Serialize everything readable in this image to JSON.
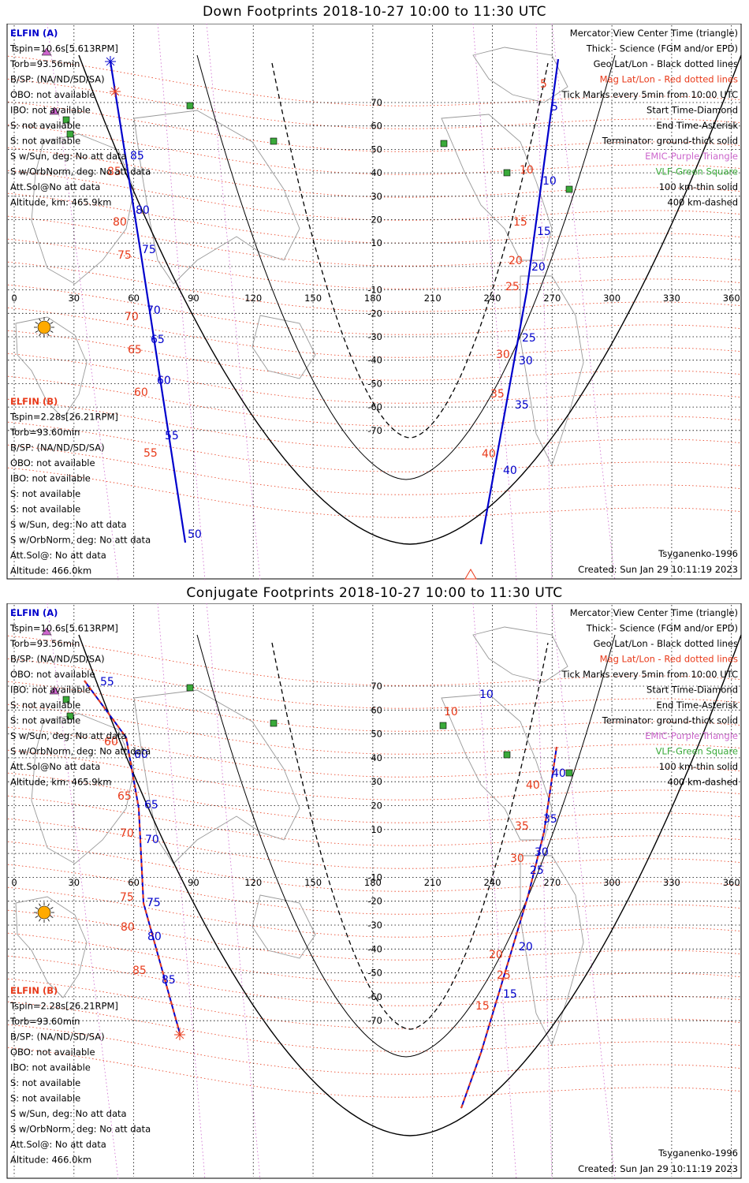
{
  "colors": {
    "blue": "#0000cc",
    "red": "#e83a1a",
    "green": "#3aaa3a",
    "purple": "#cc66cc",
    "black": "#000000",
    "sun": "#ffaa00"
  },
  "icons": [
    "sun-icon",
    "purple-triangle-icon",
    "green-square-icon",
    "asterisk-icon",
    "diamond-icon",
    "center-triangle-icon"
  ],
  "panels": [
    {
      "title": "Down Footprints 2018-10-27 10:00 to 11:30 UTC",
      "info_a": [
        "ELFIN (A)",
        "Tspin=10.6s[5.613RPM]",
        "Torb=93.56min",
        "B/SP: (NA/ND/SD/SA)",
        "OBO: not available",
        "IBO: not available",
        "S: not available",
        "S: not available",
        "S w/Sun, deg: No att data",
        "S w/OrbNorm, deg: No att data",
        "Att.Sol@No att data",
        "Altitude, km: 465.9km"
      ],
      "info_b": [
        "ELFIN (B)",
        "Tspin=2.28s[26.21RPM]",
        "Torb=93.60min",
        "B/SP: (NA/ND/SD/SA)",
        "OBO: not available",
        "IBO: not available",
        "S: not available",
        "S: not available",
        "S w/Sun, deg: No att data",
        "S w/OrbNorm, deg: No att data",
        "Att.Sol@: No att data",
        "Altitude: 466.0km"
      ],
      "legend": [
        "Mercator View Center Time (triangle)",
        "Thick - Science (FGM and/or EPD)",
        "Geo Lat/Lon - Black dotted lines",
        "Mag Lat/Lon - Red dotted lines",
        "Tick Marks every 5min from 10:00 UTC",
        "Start Time-Diamond",
        "End Time-Asterisk",
        "Terminator: ground-thick solid",
        "EMIC-Purple Triangle",
        "VLF-Green Square",
        "100 km-thin solid",
        "400 km-dashed"
      ],
      "model": "Tsyganenko-1996",
      "created": "Created: Sun Jan 29 10:11:19 2023",
      "lon_labels": [
        "0",
        "30",
        "60",
        "90",
        "120",
        "150",
        "180",
        "210",
        "240",
        "270",
        "300",
        "330",
        "360"
      ],
      "lat_labels": [
        "70",
        "60",
        "50",
        "40",
        "30",
        "20",
        "10",
        "-10",
        "-20",
        "-30",
        "-40",
        "-50",
        "-60",
        "-70"
      ],
      "track_a_labels": [
        "85",
        "80",
        "75",
        "70",
        "65",
        "60",
        "55",
        "50"
      ],
      "track_b_labels": [
        "85",
        "80",
        "75",
        "70",
        "65",
        "60",
        "55"
      ],
      "track_a2_labels": [
        "5",
        "10",
        "15",
        "20",
        "25",
        "30",
        "35",
        "40"
      ],
      "track_b2_labels": [
        "5",
        "10",
        "15",
        "20",
        "25",
        "30",
        "35",
        "40"
      ]
    },
    {
      "title": "Conjugate Footprints 2018-10-27 10:00 to 11:30 UTC",
      "info_a": [
        "ELFIN (A)",
        "Tspin=10.6s[5.613RPM]",
        "Torb=93.56min",
        "B/SP: (NA/ND/SD/SA)",
        "OBO: not available",
        "IBO: not available",
        "S: not available",
        "S: not available",
        "S w/Sun, deg: No att data",
        "S w/OrbNorm, deg: No att data",
        "Att.Sol@No att data",
        "Altitude, km: 465.9km"
      ],
      "info_b": [
        "ELFIN (B)",
        "Tspin=2.28s[26.21RPM]",
        "Torb=93.60min",
        "B/SP: (NA/ND/SD/SA)",
        "OBO: not available",
        "IBO: not available",
        "S: not available",
        "S: not available",
        "S w/Sun, deg: No att data",
        "S w/OrbNorm, deg: No att data",
        "Att.Sol@: No att data",
        "Altitude: 466.0km"
      ],
      "legend": [
        "Mercator View Center Time (triangle)",
        "Thick - Science (FGM and/or EPD)",
        "Geo Lat/Lon - Black dotted lines",
        "Mag Lat/Lon - Red dotted lines",
        "Tick Marks every 5min from 10:00 UTC",
        "Start Time-Diamond",
        "End Time-Asterisk",
        "Terminator: ground-thick solid",
        "EMIC-Purple Triangle",
        "VLF-Green Square",
        "100 km-thin solid",
        "400 km-dashed"
      ],
      "model": "Tsyganenko-1996",
      "created": "Created: Sun Jan 29 10:11:19 2023",
      "lon_labels": [
        "0",
        "30",
        "60",
        "90",
        "120",
        "150",
        "180",
        "210",
        "240",
        "270",
        "300",
        "330",
        "360"
      ],
      "lat_labels": [
        "70",
        "60",
        "50",
        "40",
        "30",
        "20",
        "10",
        "-10",
        "-20",
        "-30",
        "-40",
        "-50",
        "-60",
        "-70"
      ],
      "track_a_labels": [
        "55",
        "60",
        "65",
        "70",
        "75",
        "80",
        "85"
      ],
      "track_b_labels": [
        "60",
        "65",
        "70",
        "75",
        "80",
        "85"
      ],
      "track_a2_labels": [
        "40",
        "35",
        "30",
        "25",
        "20",
        "15",
        "10"
      ],
      "track_b2_labels": [
        "40",
        "35",
        "30",
        "25",
        "20",
        "15",
        "10"
      ]
    }
  ]
}
